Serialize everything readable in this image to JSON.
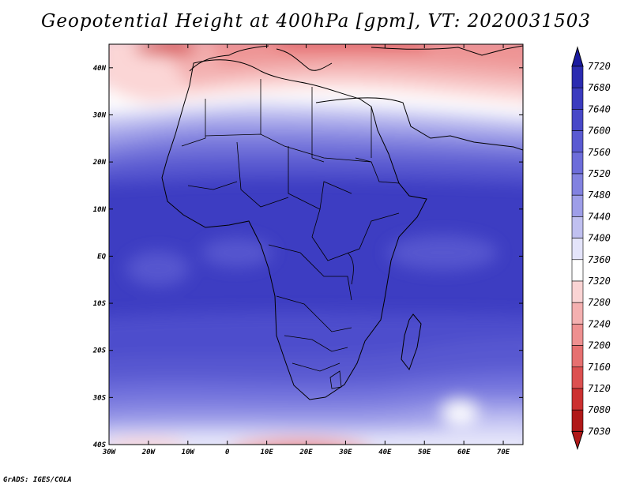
{
  "title": "Geopotential Height at 400hPa [gpm], VT: 2020031503",
  "footer": "GrADS: IGES/COLA",
  "map": {
    "lon_labels": [
      "30W",
      "20W",
      "10W",
      "0",
      "10E",
      "20E",
      "30E",
      "40E",
      "50E",
      "60E",
      "70E"
    ],
    "lat_labels": [
      "40N",
      "30N",
      "20N",
      "10N",
      "EQ",
      "10S",
      "20S",
      "30S",
      "40S"
    ],
    "lon_range": [
      -30,
      75
    ],
    "lat_range": [
      -40,
      45
    ]
  },
  "colorbar": {
    "levels": [
      "7720",
      "7680",
      "7640",
      "7600",
      "7560",
      "7520",
      "7480",
      "7440",
      "7400",
      "7360",
      "7320",
      "7280",
      "7240",
      "7200",
      "7160",
      "7120",
      "7080",
      "7030"
    ],
    "colors": [
      "#1a1aa0",
      "#2b2bb0",
      "#3b3bbf",
      "#4848c8",
      "#5a5ad2",
      "#6d6dda",
      "#8282e0",
      "#9e9ee8",
      "#c0c0f0",
      "#e4e4fa",
      "#ffffff",
      "#fad4d4",
      "#f4b0b0",
      "#ee9090",
      "#e67070",
      "#dc5050",
      "#cc3030",
      "#b01818"
    ]
  }
}
